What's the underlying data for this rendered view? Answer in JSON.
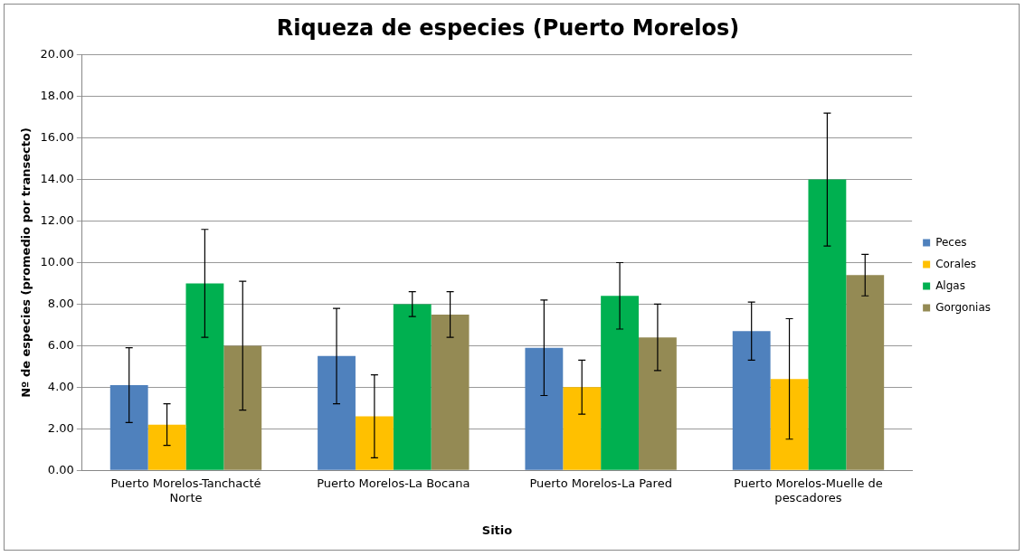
{
  "chart_data": {
    "type": "bar",
    "title": "Riqueza de especies (Puerto Morelos)",
    "xlabel": "Sitio",
    "ylabel": "Nº de especies (promedio por transecto)",
    "categories": [
      "Puerto Morelos-Tanchacté Norte",
      "Puerto Morelos-La Bocana",
      "Puerto Morelos-La Pared",
      "Puerto Morelos-Muelle de pescadores"
    ],
    "series": [
      {
        "name": "Peces",
        "color": "#4f81bd",
        "values": [
          4.1,
          5.5,
          5.9,
          6.7
        ],
        "errors": [
          1.8,
          2.3,
          2.3,
          1.4
        ]
      },
      {
        "name": "Corales",
        "color": "#ffc000",
        "values": [
          2.2,
          2.6,
          4.0,
          4.4
        ],
        "errors": [
          1.0,
          2.0,
          1.3,
          2.9
        ]
      },
      {
        "name": "Algas",
        "color": "#00b050",
        "values": [
          9.0,
          8.0,
          8.4,
          14.0
        ],
        "errors": [
          2.6,
          0.6,
          1.6,
          3.2
        ]
      },
      {
        "name": "Gorgonias",
        "color": "#948a54",
        "values": [
          6.0,
          7.5,
          6.4,
          9.4
        ],
        "errors": [
          3.1,
          1.1,
          1.6,
          1.0
        ]
      }
    ],
    "ylim": [
      0,
      20
    ],
    "yticks": [
      {
        "value": 0,
        "label": "0.00"
      },
      {
        "value": 2,
        "label": "2.00"
      },
      {
        "value": 4,
        "label": "4.00"
      },
      {
        "value": 6,
        "label": "6.00"
      },
      {
        "value": 8,
        "label": "8.00"
      },
      {
        "value": 10,
        "label": "10.00"
      },
      {
        "value": 12,
        "label": "12.00"
      },
      {
        "value": 14,
        "label": "14.00"
      },
      {
        "value": 16,
        "label": "16.00"
      },
      {
        "value": 18,
        "label": "18.00"
      },
      {
        "value": 20,
        "label": "20.00"
      }
    ],
    "grid": "y",
    "legend": "right"
  }
}
